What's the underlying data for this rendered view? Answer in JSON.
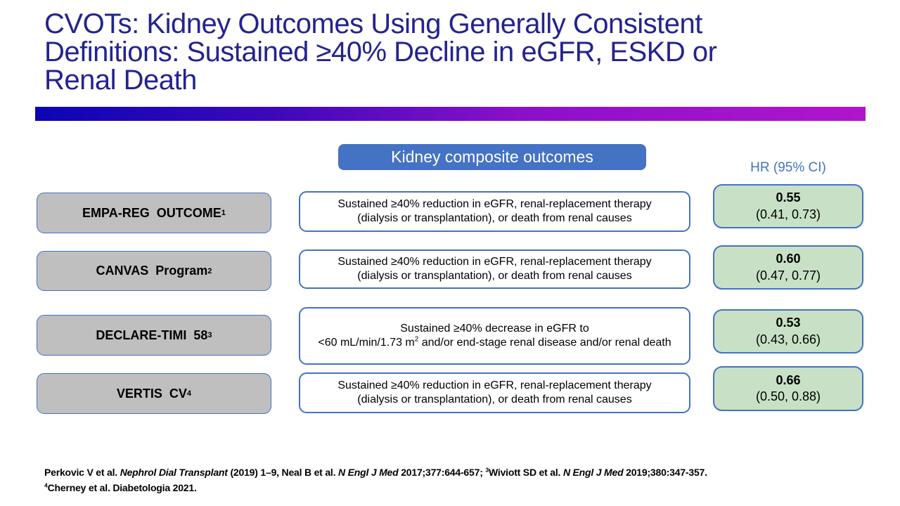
{
  "slide": {
    "title_lines": [
      "CVOTs: Kidney Outcomes Using Generally Consistent",
      "Definitions: Sustained ≥40% Decline in eGFR, ESKD or",
      "Renal Death"
    ],
    "colors": {
      "title_text": "#23238F",
      "accent_blue": "#4472C4",
      "gray_fill": "#BFBFBF",
      "green_fill": "#C8E1C6",
      "gradient_left": "#0B06B4",
      "gradient_right": "#B015CB"
    }
  },
  "header": {
    "column_label": "Kidney composite outcomes",
    "hr_label": "HR (95% CI)"
  },
  "rows": [
    {
      "trial": {
        "label": "EMPA-REG  OUTCOME",
        "sup": "1"
      },
      "outcome": {
        "segments": [
          {
            "t": "Sustained ≥40% reduction in eGFR, renal-replacement therapy"
          },
          {
            "br": true
          },
          {
            "t": "(dialysis or transplantation), or death from renal causes"
          }
        ]
      },
      "hr": {
        "value": "0.55",
        "ci": "(0.41, 0.73)"
      }
    },
    {
      "trial": {
        "label": "CANVAS  Program",
        "sup": "2"
      },
      "outcome": {
        "segments": [
          {
            "t": "Sustained ≥40% reduction in eGFR, renal-replacement therapy"
          },
          {
            "br": true
          },
          {
            "t": "(dialysis or transplantation), or death from renal causes"
          }
        ]
      },
      "hr": {
        "value": "0.60",
        "ci": "(0.47, 0.77)"
      }
    },
    {
      "trial": {
        "label": "DECLARE-TIMI  58",
        "sup": "3"
      },
      "outcome": {
        "segments": [
          {
            "t": "Sustained ≥40% decrease in eGFR to"
          },
          {
            "br": true
          },
          {
            "t": "<60 mL/min/1.73 m"
          },
          {
            "t": "2",
            "sup": true
          },
          {
            "t": " and/or end-stage renal disease and/or renal death"
          }
        ]
      },
      "hr": {
        "value": "0.53",
        "ci": "(0.43, 0.66)"
      }
    },
    {
      "trial": {
        "label": "VERTIS  CV",
        "sup": "4"
      },
      "outcome": {
        "segments": [
          {
            "t": "Sustained ≥40% reduction in eGFR, renal-replacement therapy"
          },
          {
            "br": true
          },
          {
            "t": "(dialysis or transplantation), or death from renal causes"
          }
        ]
      },
      "hr": {
        "value": "0.66",
        "ci": "(0.50, 0.88)"
      }
    }
  ],
  "footer": {
    "lines": [
      {
        "segments": [
          {
            "t": "Perkovic V et al. "
          },
          {
            "t": "Nephrol Dial Transplant",
            "i": true
          },
          {
            "t": " (2019) 1–9, Neal B et al. "
          },
          {
            "t": "N Engl J Med",
            "i": true
          },
          {
            "t": " 2017;377:644-657; "
          },
          {
            "t": "3",
            "sup": true
          },
          {
            "t": "Wiviott SD et al. "
          },
          {
            "t": "N Engl J Med",
            "i": true
          },
          {
            "t": " 2019;380:347-357."
          }
        ]
      },
      {
        "segments": [
          {
            "t": "4",
            "sup": true
          },
          {
            "t": "Cherney et al. Diabetologia 2021."
          }
        ]
      }
    ]
  }
}
